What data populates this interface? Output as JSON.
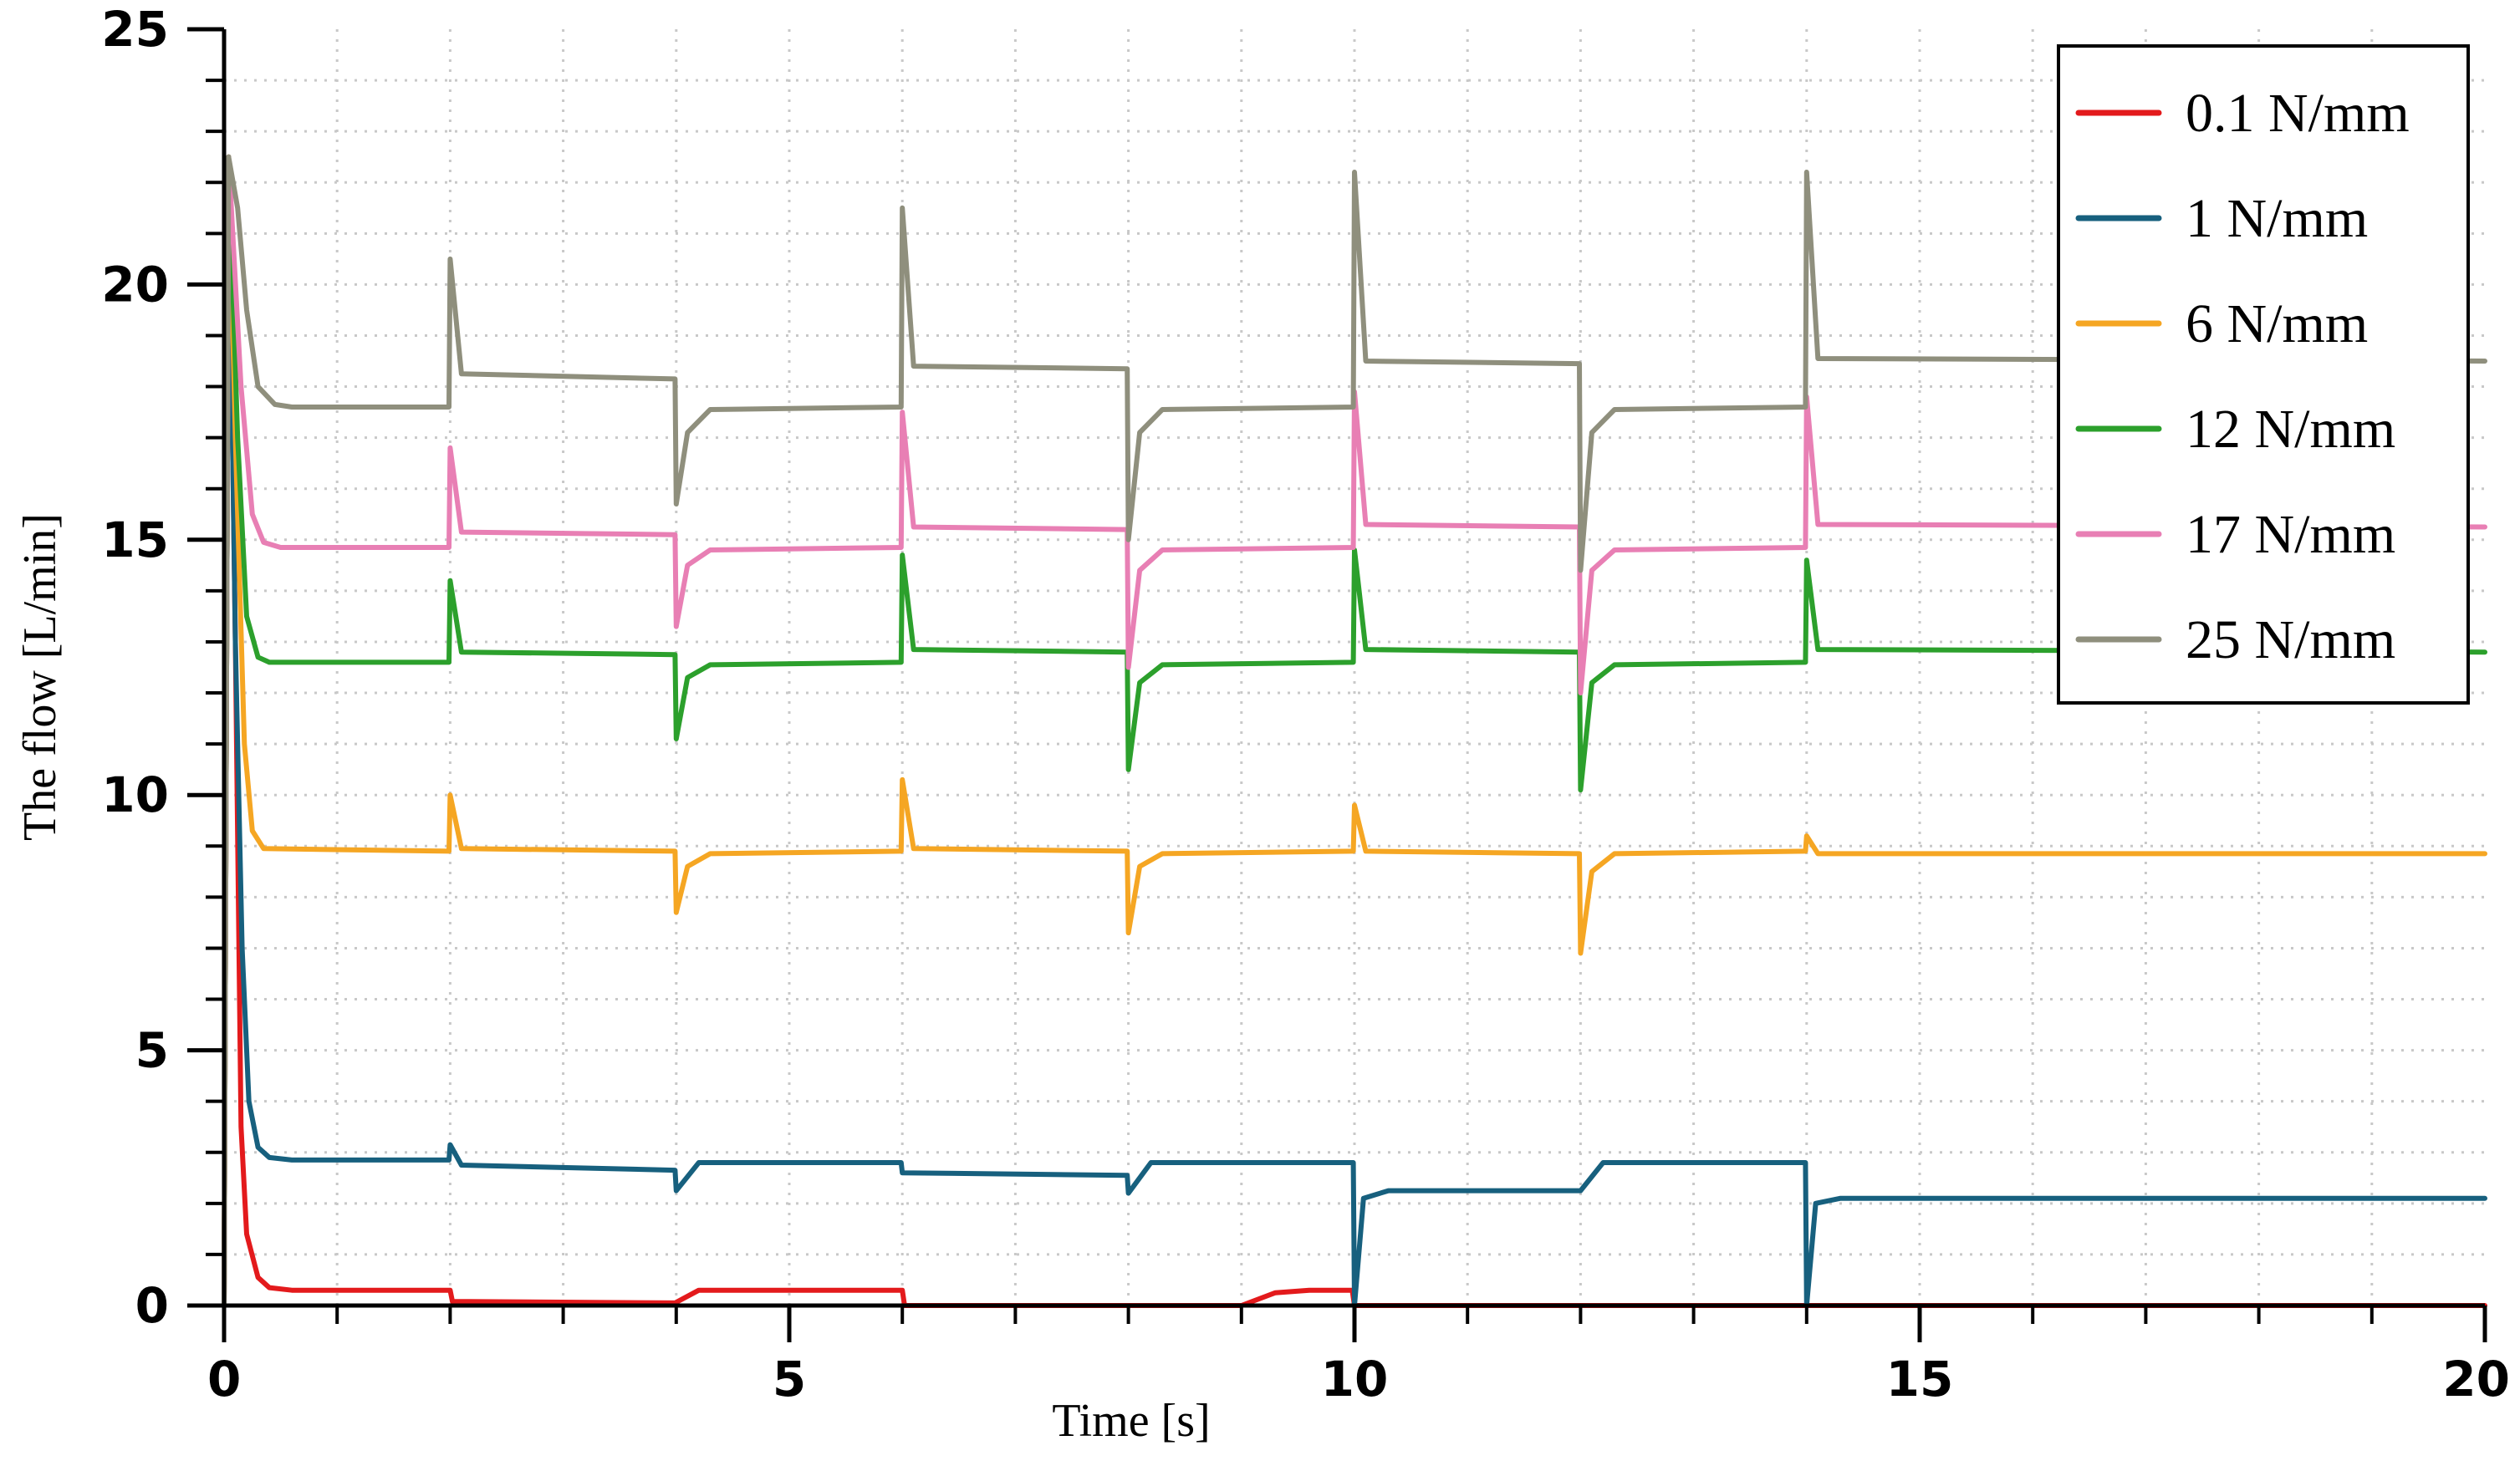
{
  "chart_data": {
    "type": "line",
    "title": "",
    "xlabel": "Time  [s]",
    "ylabel": "The flow   [L/min]",
    "xlim": [
      0,
      20
    ],
    "ylim": [
      0,
      25
    ],
    "x_ticks": [
      0,
      5,
      10,
      15,
      20
    ],
    "y_ticks": [
      0,
      5,
      10,
      15,
      20,
      25
    ],
    "x_tick_labels": [
      "0",
      "5",
      "10",
      "15",
      "20"
    ],
    "y_tick_labels": [
      "0",
      "5",
      "10",
      "15",
      "20",
      "25"
    ],
    "x_minor_step": 1,
    "y_minor_step": 1,
    "grid": true,
    "legend_position": "top-right",
    "series": [
      {
        "name": "0.1 N/mm",
        "color": "#e31a1c",
        "points": [
          [
            0,
            0
          ],
          [
            0.04,
            22.5
          ],
          [
            0.1,
            13
          ],
          [
            0.15,
            3.5
          ],
          [
            0.2,
            1.4
          ],
          [
            0.3,
            0.55
          ],
          [
            0.4,
            0.35
          ],
          [
            0.6,
            0.3
          ],
          [
            2.0,
            0.3
          ],
          [
            2.02,
            0.08
          ],
          [
            3.99,
            0.05
          ],
          [
            4.2,
            0.3
          ],
          [
            6.0,
            0.3
          ],
          [
            6.02,
            0.0
          ],
          [
            9.0,
            0.0
          ],
          [
            9.3,
            0.25
          ],
          [
            9.6,
            0.3
          ],
          [
            9.98,
            0.3
          ],
          [
            10.0,
            0.0
          ],
          [
            20,
            0.0
          ]
        ]
      },
      {
        "name": "1 N/mm",
        "color": "#17607e",
        "points": [
          [
            0,
            0
          ],
          [
            0.04,
            22.5
          ],
          [
            0.1,
            13
          ],
          [
            0.16,
            7
          ],
          [
            0.22,
            4
          ],
          [
            0.3,
            3.1
          ],
          [
            0.4,
            2.9
          ],
          [
            0.6,
            2.85
          ],
          [
            1.99,
            2.85
          ],
          [
            2.0,
            3.15
          ],
          [
            2.1,
            2.75
          ],
          [
            3.99,
            2.65
          ],
          [
            4.0,
            2.25
          ],
          [
            4.2,
            2.8
          ],
          [
            5.99,
            2.8
          ],
          [
            6.0,
            2.6
          ],
          [
            7.99,
            2.55
          ],
          [
            8.0,
            2.2
          ],
          [
            8.2,
            2.8
          ],
          [
            9.99,
            2.8
          ],
          [
            10.0,
            0.0
          ],
          [
            10.08,
            2.1
          ],
          [
            10.3,
            2.25
          ],
          [
            12.0,
            2.25
          ],
          [
            12.2,
            2.8
          ],
          [
            13.99,
            2.8
          ],
          [
            14.0,
            0.0
          ],
          [
            14.08,
            2.0
          ],
          [
            14.3,
            2.1
          ],
          [
            20,
            2.1
          ]
        ]
      },
      {
        "name": "6  N/mm",
        "color": "#f5a623",
        "points": [
          [
            0,
            0
          ],
          [
            0.04,
            22.5
          ],
          [
            0.1,
            17
          ],
          [
            0.18,
            11
          ],
          [
            0.25,
            9.3
          ],
          [
            0.35,
            8.95
          ],
          [
            1.99,
            8.9
          ],
          [
            2.0,
            10.0
          ],
          [
            2.1,
            8.95
          ],
          [
            3.99,
            8.9
          ],
          [
            4.0,
            7.7
          ],
          [
            4.1,
            8.6
          ],
          [
            4.3,
            8.85
          ],
          [
            5.99,
            8.9
          ],
          [
            6.0,
            10.3
          ],
          [
            6.1,
            8.95
          ],
          [
            7.99,
            8.9
          ],
          [
            8.0,
            7.3
          ],
          [
            8.1,
            8.6
          ],
          [
            8.3,
            8.85
          ],
          [
            9.99,
            8.9
          ],
          [
            10.0,
            9.8
          ],
          [
            10.1,
            8.9
          ],
          [
            11.99,
            8.85
          ],
          [
            12.0,
            6.9
          ],
          [
            12.1,
            8.5
          ],
          [
            12.3,
            8.85
          ],
          [
            13.99,
            8.9
          ],
          [
            14.0,
            9.2
          ],
          [
            14.1,
            8.85
          ],
          [
            20,
            8.85
          ]
        ]
      },
      {
        "name": "12 N/mm",
        "color": "#2ca02c",
        "points": [
          [
            0,
            0
          ],
          [
            0.04,
            22.5
          ],
          [
            0.12,
            17
          ],
          [
            0.2,
            13.5
          ],
          [
            0.3,
            12.7
          ],
          [
            0.4,
            12.6
          ],
          [
            1.99,
            12.6
          ],
          [
            2.0,
            14.2
          ],
          [
            2.1,
            12.8
          ],
          [
            3.99,
            12.75
          ],
          [
            4.0,
            11.1
          ],
          [
            4.1,
            12.3
          ],
          [
            4.3,
            12.55
          ],
          [
            5.99,
            12.6
          ],
          [
            6.0,
            14.7
          ],
          [
            6.1,
            12.85
          ],
          [
            7.99,
            12.8
          ],
          [
            8.0,
            10.5
          ],
          [
            8.1,
            12.2
          ],
          [
            8.3,
            12.55
          ],
          [
            9.99,
            12.6
          ],
          [
            10.0,
            14.8
          ],
          [
            10.1,
            12.85
          ],
          [
            11.99,
            12.8
          ],
          [
            12.0,
            10.1
          ],
          [
            12.1,
            12.2
          ],
          [
            12.3,
            12.55
          ],
          [
            13.99,
            12.6
          ],
          [
            14.0,
            14.6
          ],
          [
            14.1,
            12.85
          ],
          [
            20,
            12.8
          ]
        ]
      },
      {
        "name": "17 N/mm",
        "color": "#e87fb4",
        "points": [
          [
            0,
            0
          ],
          [
            0.04,
            22.5
          ],
          [
            0.15,
            18
          ],
          [
            0.25,
            15.5
          ],
          [
            0.35,
            14.95
          ],
          [
            0.5,
            14.85
          ],
          [
            1.99,
            14.85
          ],
          [
            2.0,
            16.8
          ],
          [
            2.1,
            15.15
          ],
          [
            3.99,
            15.1
          ],
          [
            4.0,
            13.3
          ],
          [
            4.1,
            14.5
          ],
          [
            4.3,
            14.8
          ],
          [
            5.99,
            14.85
          ],
          [
            6.0,
            17.5
          ],
          [
            6.1,
            15.25
          ],
          [
            7.99,
            15.2
          ],
          [
            8.0,
            12.5
          ],
          [
            8.1,
            14.4
          ],
          [
            8.3,
            14.8
          ],
          [
            9.99,
            14.85
          ],
          [
            10.0,
            17.9
          ],
          [
            10.1,
            15.3
          ],
          [
            11.99,
            15.25
          ],
          [
            12.0,
            12.0
          ],
          [
            12.1,
            14.4
          ],
          [
            12.3,
            14.8
          ],
          [
            13.99,
            14.85
          ],
          [
            14.0,
            17.8
          ],
          [
            14.1,
            15.3
          ],
          [
            20,
            15.25
          ]
        ]
      },
      {
        "name": "25 N/mm",
        "color": "#8f8f7d",
        "points": [
          [
            0,
            0
          ],
          [
            0.04,
            22.5
          ],
          [
            0.12,
            21.5
          ],
          [
            0.2,
            19.5
          ],
          [
            0.3,
            18.0
          ],
          [
            0.45,
            17.65
          ],
          [
            0.6,
            17.6
          ],
          [
            1.99,
            17.6
          ],
          [
            2.0,
            20.5
          ],
          [
            2.1,
            18.25
          ],
          [
            3.99,
            18.15
          ],
          [
            4.0,
            15.7
          ],
          [
            4.1,
            17.1
          ],
          [
            4.3,
            17.55
          ],
          [
            5.99,
            17.6
          ],
          [
            6.0,
            21.5
          ],
          [
            6.1,
            18.4
          ],
          [
            7.99,
            18.35
          ],
          [
            8.0,
            15.0
          ],
          [
            8.1,
            17.1
          ],
          [
            8.3,
            17.55
          ],
          [
            9.99,
            17.6
          ],
          [
            10.0,
            22.2
          ],
          [
            10.1,
            18.5
          ],
          [
            11.99,
            18.45
          ],
          [
            12.0,
            14.4
          ],
          [
            12.1,
            17.1
          ],
          [
            12.3,
            17.55
          ],
          [
            13.99,
            17.6
          ],
          [
            14.0,
            22.2
          ],
          [
            14.1,
            18.55
          ],
          [
            20,
            18.5
          ]
        ]
      }
    ]
  }
}
